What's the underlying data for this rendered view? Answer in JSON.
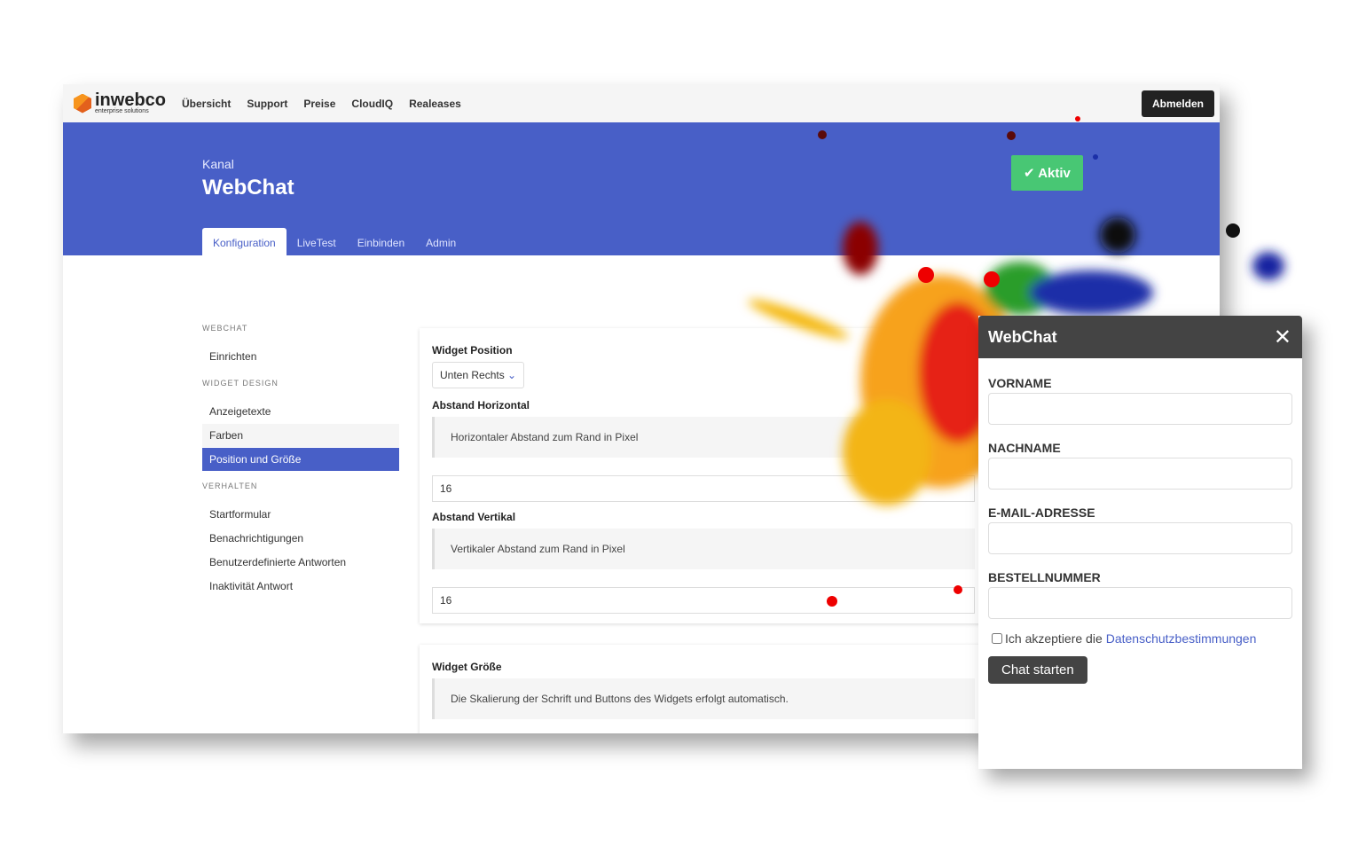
{
  "nav": {
    "logo_text": "inwebco",
    "logo_sub": "enterprise solutions",
    "items": [
      "Übersicht",
      "Support",
      "Preise",
      "CloudIQ",
      "Realeases"
    ],
    "logout": "Abmelden"
  },
  "header": {
    "kanal": "Kanal",
    "title": "WebChat",
    "status": "Aktiv",
    "tabs": [
      "Konfiguration",
      "LiveTest",
      "Einbinden",
      "Admin"
    ]
  },
  "sidebar": {
    "sections": [
      {
        "heading": "WEBCHAT",
        "items": [
          "Einrichten"
        ]
      },
      {
        "heading": "WIDGET DESIGN",
        "items": [
          "Anzeigetexte",
          "Farben",
          "Position und Größe"
        ]
      },
      {
        "heading": "VERHALTEN",
        "items": [
          "Startformular",
          "Benachrichtigungen",
          "Benutzerdefinierte Antworten",
          "Inaktivität Antwort"
        ]
      }
    ]
  },
  "position": {
    "title": "Widget Position",
    "select_value": "Unten Rechts",
    "h_label": "Abstand Horizontal",
    "h_note": "Horizontaler Abstand zum Rand in Pixel",
    "h_value": "16",
    "v_label": "Abstand Vertikal",
    "v_note": "Vertikaler Abstand zum Rand in Pixel",
    "v_value": "16"
  },
  "size": {
    "title": "Widget Größe",
    "note": "Die Skalierung der Schrift und Buttons des Widgets erfolgt automatisch."
  },
  "chat": {
    "title": "WebChat",
    "fields": [
      "VORNAME",
      "NACHNAME",
      "E-MAIL-ADRESSE",
      "BESTELLNUMMER"
    ],
    "consent_text": "Ich akzeptiere die",
    "consent_link": "Datenschutzbestimmungen",
    "start": "Chat starten"
  },
  "colors": {
    "brand": "#485fc7",
    "success": "#48c774",
    "chat_header": "#444444"
  }
}
